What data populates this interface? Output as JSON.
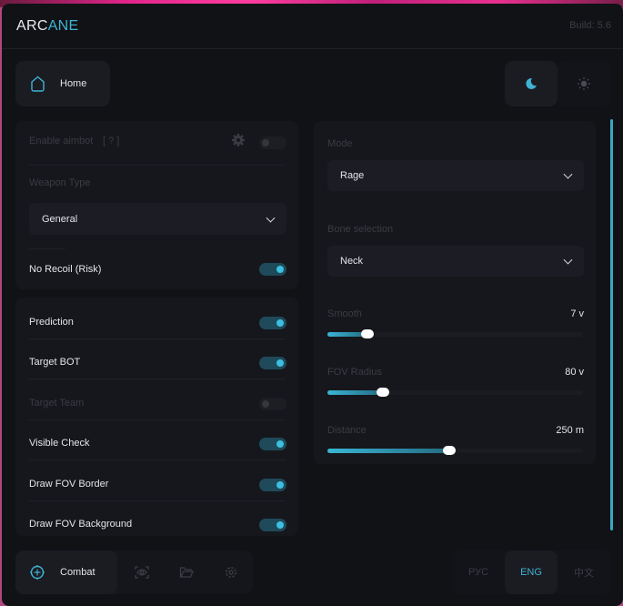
{
  "header": {
    "logo_part1": "ARC",
    "logo_part2": "ANE",
    "build": "Build: 5.6"
  },
  "nav": {
    "home_label": "Home"
  },
  "theme": {
    "active": "dark"
  },
  "left_panel_1": {
    "enable_aimbot": {
      "label": "Enable aimbot",
      "hint": "[ ? ]",
      "on": false
    },
    "weapon_type": {
      "label": "Weapon Type",
      "value": "General"
    },
    "no_recoil": {
      "label": "No Recoil (Risk)",
      "on": true
    }
  },
  "left_panel_2": {
    "toggles": [
      {
        "label": "Prediction",
        "on": true
      },
      {
        "label": "Target BOT",
        "on": true
      },
      {
        "label": "Target Team",
        "on": false
      },
      {
        "label": "Visible Check",
        "on": true
      },
      {
        "label": "Draw FOV Border",
        "on": true
      },
      {
        "label": "Draw FOV Background",
        "on": true
      }
    ]
  },
  "right_panel": {
    "mode": {
      "label": "Mode",
      "value": "Rage"
    },
    "bone": {
      "label": "Bone selection",
      "value": "Neck"
    },
    "sliders": [
      {
        "label": "Smooth",
        "value": "7 v",
        "fill_percent": 16
      },
      {
        "label": "FOV Radius",
        "value": "80 v",
        "fill_percent": 22
      },
      {
        "label": "Distance",
        "value": "250 m",
        "fill_percent": 48
      }
    ]
  },
  "bottom": {
    "combat_label": "Combat",
    "languages": [
      "РУС",
      "ENG",
      "中文"
    ],
    "active_language": "ENG"
  },
  "colors": {
    "accent": "#3fb3d3",
    "background": "#111216"
  }
}
